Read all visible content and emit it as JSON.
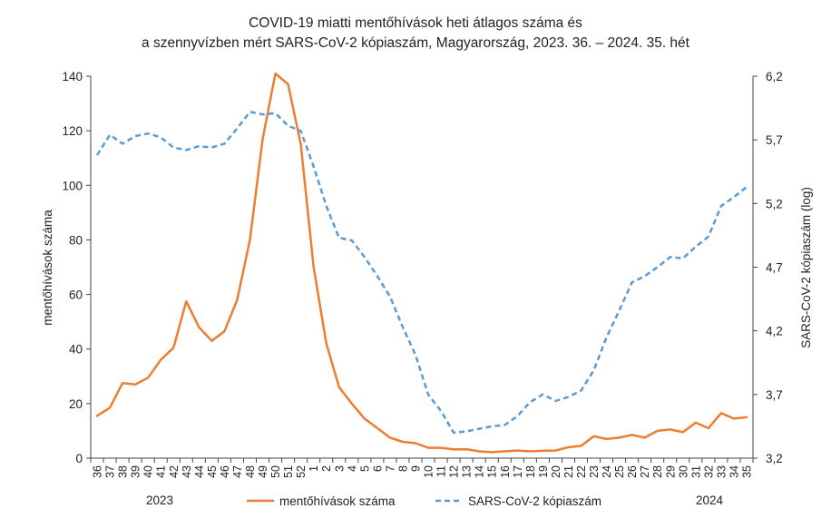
{
  "chart_data": {
    "type": "line",
    "title": [
      "COVID-19 miatti mentőhívások heti átlagos száma és",
      "a szennyvízben mért SARS-CoV-2 kópiaszám, Magyarország, 2023. 36. – 2024. 35. hét"
    ],
    "ylabel": "mentőhívások száma",
    "y2label": "SARS-CoV-2 kópiaszám (log)",
    "ylim": [
      0,
      140
    ],
    "y2lim": [
      3.2,
      6.2
    ],
    "yticks": [
      0,
      20,
      40,
      60,
      80,
      100,
      120,
      140
    ],
    "y2ticks": [
      "3,2",
      "3,7",
      "4,2",
      "4,7",
      "5,2",
      "5,7",
      "6,2"
    ],
    "categories": [
      "36",
      "37",
      "38",
      "39",
      "40",
      "41",
      "42",
      "43",
      "44",
      "45",
      "46",
      "47",
      "48",
      "49",
      "50",
      "51",
      "52",
      "1",
      "2",
      "3",
      "4",
      "5",
      "6",
      "7",
      "8",
      "9",
      "10",
      "11",
      "12",
      "13",
      "14",
      "15",
      "16",
      "17",
      "18",
      "19",
      "20",
      "21",
      "22",
      "23",
      "24",
      "25",
      "26",
      "27",
      "28",
      "29",
      "30",
      "31",
      "32",
      "33",
      "34",
      "35"
    ],
    "year_labels": [
      "2023",
      "2024"
    ],
    "legend_position": "bottom",
    "series": [
      {
        "name": "mentőhívások száma",
        "axis": "left",
        "color": "#ED7D31",
        "style": "solid",
        "values": [
          15.5,
          18.5,
          27.5,
          27,
          29.5,
          36,
          40.5,
          57.5,
          48,
          43,
          46.5,
          58,
          80,
          117,
          141,
          137,
          115,
          70,
          42,
          26,
          20,
          14.5,
          11,
          7.5,
          6,
          5.5,
          3.8,
          3.8,
          3.2,
          3.3,
          2.5,
          2.2,
          2.5,
          2.8,
          2.5,
          2.7,
          2.8,
          4,
          4.5,
          8,
          7,
          7.5,
          8.5,
          7.5,
          10,
          10.5,
          9.5,
          13,
          11,
          16.5,
          14.5,
          15
        ]
      },
      {
        "name": "SARS-CoV-2 kópiaszám",
        "axis": "right",
        "color": "#5B9BD5",
        "style": "dashed",
        "values": [
          5.58,
          5.74,
          5.67,
          5.73,
          5.75,
          5.72,
          5.64,
          5.62,
          5.65,
          5.64,
          5.67,
          5.79,
          5.92,
          5.9,
          5.91,
          5.81,
          5.77,
          5.49,
          5.18,
          4.93,
          4.91,
          4.78,
          4.63,
          4.47,
          4.23,
          4.01,
          3.7,
          3.57,
          3.4,
          3.41,
          3.43,
          3.45,
          3.46,
          3.53,
          3.64,
          3.7,
          3.65,
          3.68,
          3.73,
          3.89,
          4.15,
          4.36,
          4.58,
          4.63,
          4.7,
          4.78,
          4.77,
          4.86,
          4.94,
          5.18,
          5.25,
          5.33
        ]
      }
    ]
  }
}
